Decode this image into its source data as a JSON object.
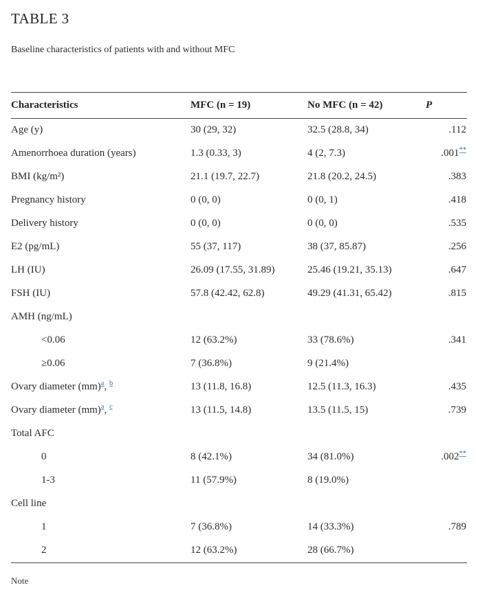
{
  "page": {
    "title": "TABLE 3",
    "subtitle": "Baseline characteristics of patients with and without MFC",
    "note": "Note"
  },
  "colors": {
    "text": "#2b2b2b",
    "link_blue": "#3a6ca5",
    "table_border": "#424242",
    "background": "#ffffff"
  },
  "table": {
    "header": {
      "characteristics": "Characteristics",
      "mfc": "MFC (n = 19)",
      "no_mfc": "No MFC (n = 42)",
      "p": "P"
    },
    "rows": [
      {
        "label": "Age (y)",
        "indent": false,
        "mfc": "30 (29, 32)",
        "no_mfc": "32.5 (28.8, 34)",
        "p": ".112"
      },
      {
        "label": "Amenorrhoea duration (years)",
        "indent": false,
        "mfc": "1.3 (0.33, 3)",
        "no_mfc": "4 (2, 7.3)",
        "p": ".001",
        "p_ref": "**"
      },
      {
        "label": "BMI (kg/m²)",
        "indent": false,
        "mfc": "21.1 (19.7, 22.7)",
        "no_mfc": "21.8 (20.2, 24.5)",
        "p": ".383"
      },
      {
        "label": "Pregnancy history",
        "indent": false,
        "mfc": "0 (0, 0)",
        "no_mfc": "0 (0, 1)",
        "p": ".418"
      },
      {
        "label": "Delivery history",
        "indent": false,
        "mfc": "0 (0, 0)",
        "no_mfc": "0 (0, 0)",
        "p": ".535"
      },
      {
        "label": "E2 (pg/mL)",
        "indent": false,
        "mfc": "55 (37, 117)",
        "no_mfc": "38 (37, 85.87)",
        "p": ".256"
      },
      {
        "label": "LH (IU)",
        "indent": false,
        "mfc": "26.09 (17.55, 31.89)",
        "no_mfc": "25.46 (19.21, 35.13)",
        "p": ".647"
      },
      {
        "label": "FSH (IU)",
        "indent": false,
        "mfc": "57.8 (42.42, 62.8)",
        "no_mfc": "49.29 (41.31, 65.42)",
        "p": ".815"
      },
      {
        "label": "AMH (ng/mL)",
        "indent": false,
        "mfc": "",
        "no_mfc": "",
        "p": ""
      },
      {
        "label": "<0.06",
        "indent": true,
        "mfc": "12 (63.2%)",
        "no_mfc": "33 (78.6%)",
        "p": ".341"
      },
      {
        "label": "≥0.06",
        "indent": true,
        "mfc": "7 (36.8%)",
        "no_mfc": "9 (21.4%)",
        "p": ""
      },
      {
        "label": "Ovary diameter (mm)",
        "indent": false,
        "refs": [
          "a",
          "b"
        ],
        "mfc": "13 (11.8, 16.8)",
        "no_mfc": "12.5 (11.3, 16.3)",
        "p": ".435"
      },
      {
        "label": "Ovary diameter (mm)",
        "indent": false,
        "refs": [
          "a",
          "c"
        ],
        "mfc": "13 (11.5, 14.8)",
        "no_mfc": "13.5 (11.5, 15)",
        "p": ".739"
      },
      {
        "label": "Total AFC",
        "indent": false,
        "mfc": "",
        "no_mfc": "",
        "p": ""
      },
      {
        "label": "0",
        "indent": true,
        "mfc": "8 (42.1%)",
        "no_mfc": "34 (81.0%)",
        "p": ".002",
        "p_ref": "**"
      },
      {
        "label": "1-3",
        "indent": true,
        "mfc": "11 (57.9%)",
        "no_mfc": "8 (19.0%)",
        "p": ""
      },
      {
        "label": "Cell line",
        "indent": false,
        "mfc": "",
        "no_mfc": "",
        "p": ""
      },
      {
        "label": "1",
        "indent": true,
        "mfc": "7 (36.8%)",
        "no_mfc": "14 (33.3%)",
        "p": ".789"
      },
      {
        "label": "2",
        "indent": true,
        "mfc": "12 (63.2%)",
        "no_mfc": "28 (66.7%)",
        "p": ""
      }
    ]
  }
}
